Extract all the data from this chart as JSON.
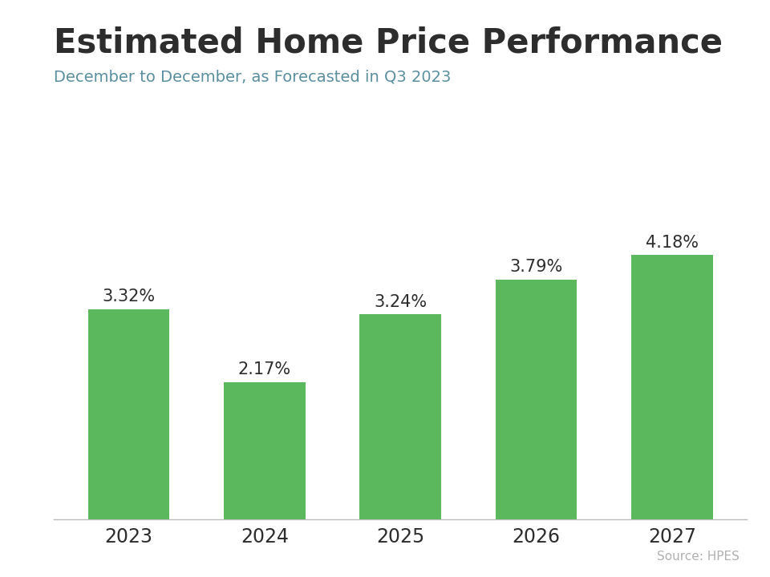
{
  "title": "Estimated Home Price Performance",
  "subtitle": "December to December, as Forecasted in Q3 2023",
  "source": "Source: HPES",
  "categories": [
    "2023",
    "2024",
    "2025",
    "2026",
    "2027"
  ],
  "values": [
    3.32,
    2.17,
    3.24,
    3.79,
    4.18
  ],
  "labels": [
    "3.32%",
    "2.17%",
    "3.24%",
    "3.79%",
    "4.18%"
  ],
  "bar_color": "#5cb85c",
  "title_color": "#2d2d2d",
  "subtitle_color": "#5a8fa0",
  "tick_color": "#2d2d2d",
  "source_color": "#b0b0b0",
  "top_stripe_color": "#29abe2",
  "background_color": "#ffffff",
  "ylim": [
    0,
    5.2
  ],
  "title_fontsize": 30,
  "subtitle_fontsize": 14,
  "label_fontsize": 15,
  "tick_fontsize": 17,
  "source_fontsize": 11,
  "bar_width": 0.6
}
